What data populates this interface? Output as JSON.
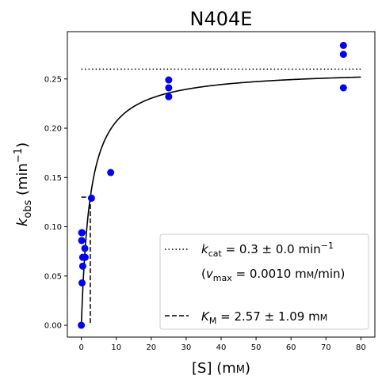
{
  "chart_data": {
    "type": "scatter",
    "title": "N404E",
    "xlabel": {
      "main": "[S] (m",
      "unit_sc": "M",
      "close": ")"
    },
    "ylabel": {
      "k": "k",
      "sub": "obs",
      "unit": " (min",
      "sup": "−1",
      "close": ")"
    },
    "xlim": [
      -4,
      84
    ],
    "ylim": [
      -0.012,
      0.298
    ],
    "xticks": [
      0,
      10,
      20,
      30,
      40,
      50,
      60,
      70,
      80
    ],
    "xtick_labels": [
      "0",
      "10",
      "20",
      "30",
      "40",
      "50",
      "60",
      "70",
      "80"
    ],
    "yticks": [
      0.0,
      0.05,
      0.1,
      0.15,
      0.2,
      0.25
    ],
    "ytick_labels": [
      "0.00",
      "0.05",
      "0.10",
      "0.15",
      "0.20",
      "0.25"
    ],
    "points": {
      "color": "#0000ff",
      "x": [
        0,
        0.1,
        0.1,
        0.2,
        0.2,
        0.4,
        0.4,
        1.0,
        1.1,
        2.9,
        8.4,
        25,
        25,
        25,
        75,
        75,
        75
      ],
      "y": [
        0.0,
        0.094,
        0.086,
        0.094,
        0.043,
        0.069,
        0.06,
        0.078,
        0.069,
        0.129,
        0.155,
        0.249,
        0.241,
        0.232,
        0.284,
        0.275,
        0.241
      ]
    },
    "fit_curve": {
      "kcat": 0.26,
      "KM": 2.57,
      "x_range": [
        0.01,
        80
      ],
      "color": "#000000"
    },
    "kcat_line": {
      "y": 0.26,
      "x_range": [
        0,
        80
      ],
      "style": "dotted"
    },
    "km_line": {
      "x": 2.57,
      "y": 0.13,
      "x_start": 0,
      "style": "dashed"
    },
    "legend": {
      "placement": "bottom-right",
      "kcat": {
        "k": "k",
        "sub": "cat",
        "text": " = 0.3 ± 0.0 min",
        "sup": "−1"
      },
      "vmax": {
        "open": "(",
        "v": "v",
        "sub": "max",
        "text": " = 0.0010 m",
        "unit_sc": "M",
        "close": "/min)"
      },
      "km": {
        "k": "K",
        "sub": "M",
        "text": " = 2.57 ± 1.09 m",
        "unit_sc": "M"
      }
    }
  }
}
